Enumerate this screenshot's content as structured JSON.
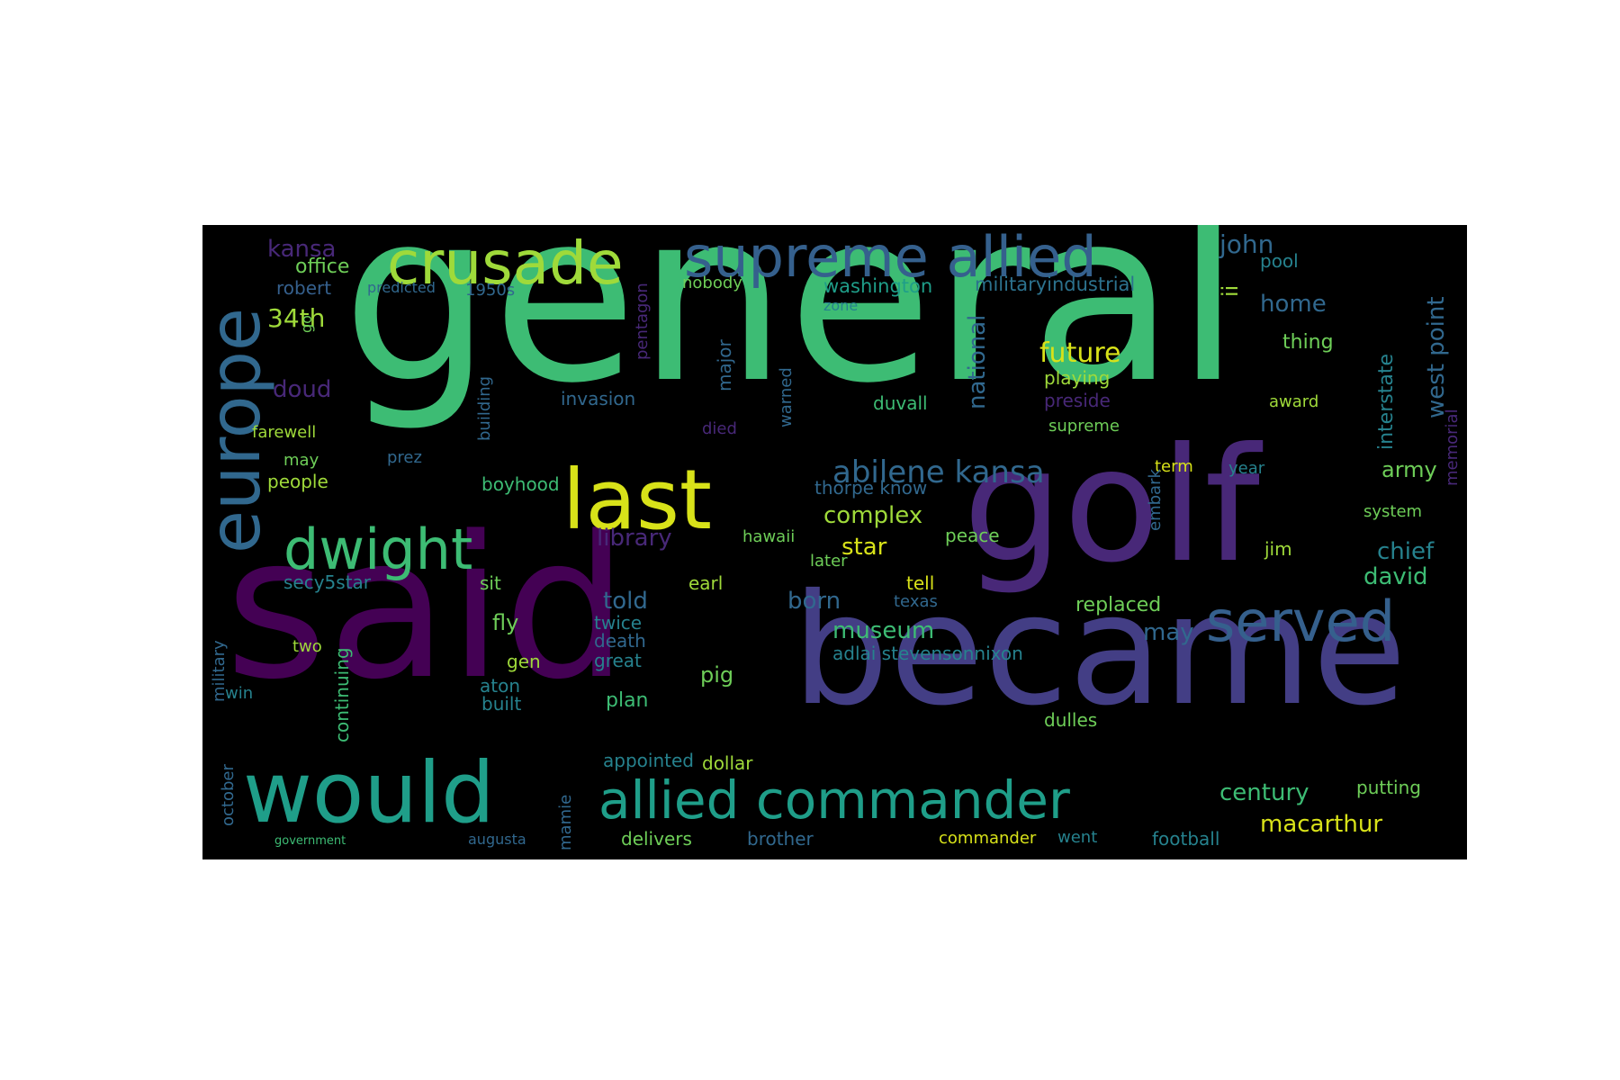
{
  "palette": {
    "green": "#3dbc74",
    "teal": "#1f9e89",
    "blue": "#31688e",
    "steelblue": "#35608d",
    "purple": "#482878",
    "darkpurple": "#440154",
    "yellow": "#d8e219",
    "lime": "#9fda3a",
    "mint": "#6ece58"
  },
  "words": [
    {
      "text": "general",
      "color": "#3dbc74"
    },
    {
      "text": "said",
      "color": "#440154"
    },
    {
      "text": "became",
      "color": "#433e85"
    },
    {
      "text": "golf",
      "color": "#482878"
    },
    {
      "text": "would",
      "color": "#1f9e89"
    },
    {
      "text": "last",
      "color": "#d8e219"
    },
    {
      "text": "europe",
      "color": "#31688e"
    },
    {
      "text": "crusade",
      "color": "#9fda3a"
    },
    {
      "text": "supreme allied",
      "color": "#35608d"
    },
    {
      "text": "dwight",
      "color": "#3dbc74"
    },
    {
      "text": "allied commander",
      "color": "#1f9e89"
    },
    {
      "text": "served",
      "color": "#35608d"
    },
    {
      "text": "abilene kansa",
      "color": "#31688e"
    },
    {
      "text": "kansa",
      "color": "#482878"
    },
    {
      "text": "john",
      "color": "#31688e"
    },
    {
      "text": "office",
      "color": "#6ece58"
    },
    {
      "text": "robert",
      "color": "#35608d"
    },
    {
      "text": "predicted",
      "color": "#31688e"
    },
    {
      "text": "1950s",
      "color": "#31688e"
    },
    {
      "text": "washington",
      "color": "#1f9e89"
    },
    {
      "text": "militaryindustrial",
      "color": "#2c728e"
    },
    {
      "text": "nobody",
      "color": "#6ece58"
    },
    {
      "text": "zone",
      "color": "#26828e"
    },
    {
      "text": "34th",
      "color": "#9fda3a"
    },
    {
      "text": "home",
      "color": "#31688e"
    },
    {
      "text": "pool",
      "color": "#26828e"
    },
    {
      "text": "west point",
      "color": "#31688e"
    },
    {
      "text": "interstate",
      "color": "#26828e"
    },
    {
      "text": "memorial",
      "color": "#482878"
    },
    {
      "text": "future",
      "color": "#d8e219"
    },
    {
      "text": "thing",
      "color": "#6ece58"
    },
    {
      "text": "playing",
      "color": "#9fda3a"
    },
    {
      "text": "preside",
      "color": "#482878"
    },
    {
      "text": "doud",
      "color": "#482878"
    },
    {
      "text": "invasion",
      "color": "#31688e"
    },
    {
      "text": "duvall",
      "color": "#3dbc74"
    },
    {
      "text": "national",
      "color": "#31688e"
    },
    {
      "text": "major",
      "color": "#31688e"
    },
    {
      "text": "warned",
      "color": "#31688e"
    },
    {
      "text": "farewell",
      "color": "#9fda3a"
    },
    {
      "text": "award",
      "color": "#9fda3a"
    },
    {
      "text": "supreme",
      "color": "#6ece58"
    },
    {
      "text": "died",
      "color": "#482878"
    },
    {
      "text": "army",
      "color": "#6ece58"
    },
    {
      "text": "may",
      "color": "#6ece58"
    },
    {
      "text": "prez",
      "color": "#31688e"
    },
    {
      "text": "term",
      "color": "#d8e219"
    },
    {
      "text": "year",
      "color": "#26828e"
    },
    {
      "text": "people",
      "color": "#9fda3a"
    },
    {
      "text": "boyhood",
      "color": "#3dbc74"
    },
    {
      "text": "thorpe know",
      "color": "#31688e"
    },
    {
      "text": "complex",
      "color": "#9fda3a"
    },
    {
      "text": "system",
      "color": "#6ece58"
    },
    {
      "text": "library",
      "color": "#482878"
    },
    {
      "text": "hawaii",
      "color": "#6ece58"
    },
    {
      "text": "peace",
      "color": "#6ece58"
    },
    {
      "text": "star",
      "color": "#d8e219"
    },
    {
      "text": "chief",
      "color": "#26828e"
    },
    {
      "text": "embark",
      "color": "#31688e"
    },
    {
      "text": "jim",
      "color": "#9fda3a"
    },
    {
      "text": "secy5star",
      "color": "#26828e"
    },
    {
      "text": "sit",
      "color": "#6ece58"
    },
    {
      "text": "earl",
      "color": "#9fda3a"
    },
    {
      "text": "later",
      "color": "#6ece58"
    },
    {
      "text": "tell",
      "color": "#d8e219"
    },
    {
      "text": "david",
      "color": "#3dbc74"
    },
    {
      "text": "told",
      "color": "#31688e"
    },
    {
      "text": "born",
      "color": "#31688e"
    },
    {
      "text": "texas",
      "color": "#31688e"
    },
    {
      "text": "replaced",
      "color": "#6ece58"
    },
    {
      "text": "fly",
      "color": "#6ece58"
    },
    {
      "text": "twice",
      "color": "#26828e"
    },
    {
      "text": "death",
      "color": "#31688e"
    },
    {
      "text": "museum",
      "color": "#3dbc74"
    },
    {
      "text": "may",
      "color": "#31688e"
    },
    {
      "text": "military",
      "color": "#31688e"
    },
    {
      "text": "two",
      "color": "#9fda3a"
    },
    {
      "text": "continuing",
      "color": "#3dbc74"
    },
    {
      "text": "gen",
      "color": "#9fda3a"
    },
    {
      "text": "great",
      "color": "#26828e"
    },
    {
      "text": "adlai stevensonnixon",
      "color": "#26828e"
    },
    {
      "text": "pig",
      "color": "#6ece58"
    },
    {
      "text": "aton",
      "color": "#26828e"
    },
    {
      "text": "built",
      "color": "#26828e"
    },
    {
      "text": "plan",
      "color": "#3dbc74"
    },
    {
      "text": "win",
      "color": "#26828e"
    },
    {
      "text": "dulles",
      "color": "#6ece58"
    },
    {
      "text": "appointed",
      "color": "#26828e"
    },
    {
      "text": "dollar",
      "color": "#9fda3a"
    },
    {
      "text": "october",
      "color": "#31688e"
    },
    {
      "text": "mamie",
      "color": "#31688e"
    },
    {
      "text": "century",
      "color": "#3dbc74"
    },
    {
      "text": "putting",
      "color": "#6ece58"
    },
    {
      "text": "macarthur",
      "color": "#d8e219"
    },
    {
      "text": "delivers",
      "color": "#6ece58"
    },
    {
      "text": "brother",
      "color": "#31688e"
    },
    {
      "text": "commander",
      "color": "#d8e219"
    },
    {
      "text": "went",
      "color": "#26828e"
    },
    {
      "text": "football",
      "color": "#26828e"
    },
    {
      "text": "government",
      "color": "#3dbc74"
    },
    {
      "text": "augusta",
      "color": "#31688e"
    },
    {
      "text": "go",
      "color": "#6ece58"
    },
    {
      "text": "ii",
      "color": "#9fda3a"
    },
    {
      "text": "building",
      "color": "#31688e"
    },
    {
      "text": "pentagon",
      "color": "#482878"
    }
  ]
}
